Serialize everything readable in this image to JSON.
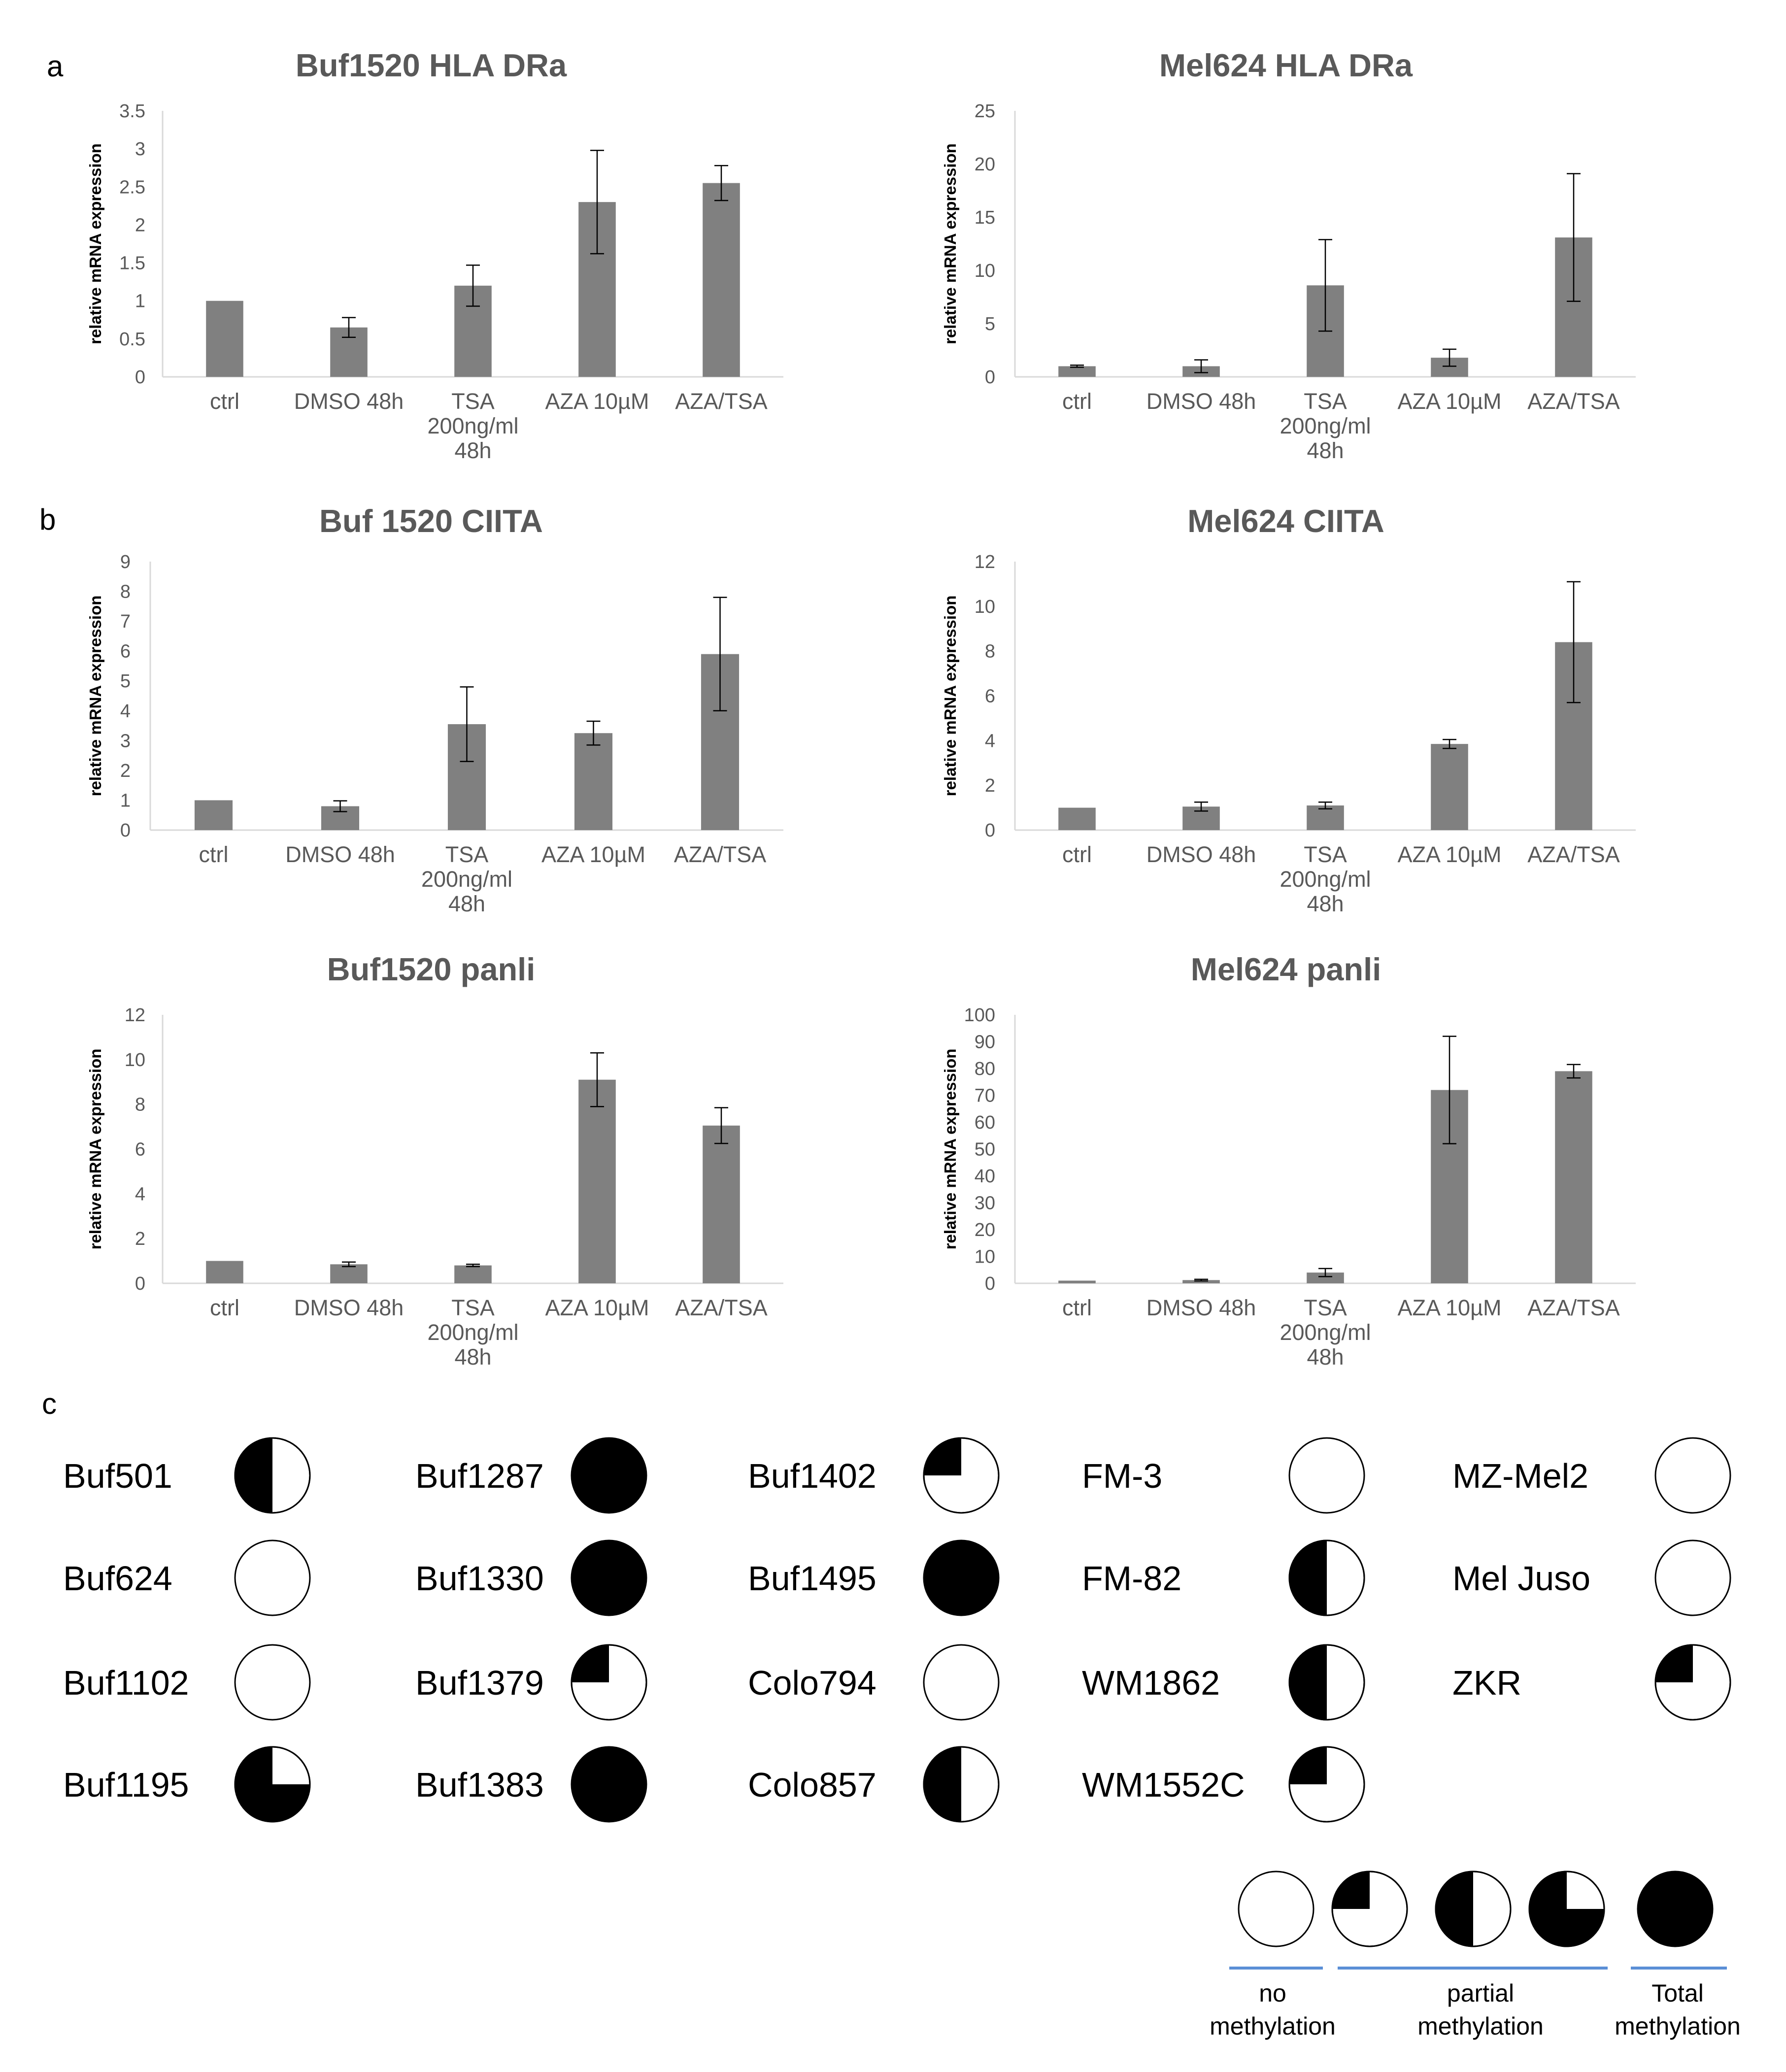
{
  "panel_letters": {
    "a": "a",
    "b": "b",
    "c": "c"
  },
  "chart_data": [
    {
      "type": "bar",
      "title": "Buf1520 HLA DRa",
      "ylabel": "relative mRNA expression",
      "categories": [
        "ctrl",
        "DMSO 48h",
        "TSA 200ng/ml 48h",
        "AZA 10µM",
        "AZA/TSA"
      ],
      "values": [
        1.0,
        0.65,
        1.2,
        2.3,
        2.55
      ],
      "errors": [
        0.0,
        0.13,
        0.27,
        0.68,
        0.23
      ],
      "ylim": [
        0,
        3.5
      ],
      "yticks": [
        "0",
        "0.5",
        "1",
        "1.5",
        "2",
        "2.5",
        "3",
        "3.5"
      ],
      "color": "#808080"
    },
    {
      "type": "bar",
      "title": "Mel624 HLA DRa",
      "ylabel": "relative mRNA expression",
      "categories": [
        "ctrl",
        "DMSO 48h",
        "TSA 200ng/ml 48h",
        "AZA 10µM",
        "AZA/TSA"
      ],
      "values": [
        1.0,
        1.0,
        8.6,
        1.8,
        13.1
      ],
      "errors": [
        0.1,
        0.6,
        4.3,
        0.8,
        6.0
      ],
      "ylim": [
        0,
        25
      ],
      "yticks": [
        "0",
        "5",
        "10",
        "15",
        "20",
        "25"
      ],
      "color": "#808080"
    },
    {
      "type": "bar",
      "title": "Buf 1520 CIITA",
      "ylabel": "relative mRNA expression",
      "categories": [
        "ctrl",
        "DMSO 48h",
        "TSA 200ng/ml 48h",
        "AZA 10µM",
        "AZA/TSA"
      ],
      "values": [
        1.0,
        0.8,
        3.55,
        3.25,
        5.9
      ],
      "errors": [
        0.0,
        0.18,
        1.25,
        0.4,
        1.9
      ],
      "ylim": [
        0,
        9
      ],
      "yticks": [
        "0",
        "1",
        "2",
        "3",
        "4",
        "5",
        "6",
        "7",
        "8",
        "9"
      ],
      "color": "#808080"
    },
    {
      "type": "bar",
      "title": "Mel624 CIITA",
      "ylabel": "relative mRNA expression",
      "categories": [
        "ctrl",
        "DMSO 48h",
        "TSA 200ng/ml 48h",
        "AZA 10µM",
        "AZA/TSA"
      ],
      "values": [
        1.0,
        1.05,
        1.1,
        3.85,
        8.4
      ],
      "errors": [
        0.0,
        0.2,
        0.15,
        0.2,
        2.7
      ],
      "ylim": [
        0,
        12
      ],
      "yticks": [
        "0",
        "2",
        "4",
        "6",
        "8",
        "10",
        "12"
      ],
      "color": "#808080"
    },
    {
      "type": "bar",
      "title": "Buf1520 panli",
      "ylabel": "relative mRNA expression",
      "categories": [
        "ctrl",
        "DMSO 48h",
        "TSA 200ng/ml 48h",
        "AZA 10µM",
        "AZA/TSA"
      ],
      "values": [
        1.0,
        0.85,
        0.8,
        9.1,
        7.05
      ],
      "errors": [
        0.0,
        0.1,
        0.05,
        1.2,
        0.8
      ],
      "ylim": [
        0,
        12
      ],
      "yticks": [
        "0",
        "2",
        "4",
        "6",
        "8",
        "10",
        "12"
      ],
      "color": "#808080"
    },
    {
      "type": "bar",
      "title": "Mel624 panli",
      "ylabel": "relative mRNA expression",
      "categories": [
        "ctrl",
        "DMSO 48h",
        "TSA 200ng/ml 48h",
        "AZA 10µM",
        "AZA/TSA"
      ],
      "values": [
        1.0,
        1.2,
        4.0,
        72.0,
        79.0
      ],
      "errors": [
        0.0,
        0.3,
        1.5,
        20.0,
        2.5
      ],
      "ylim": [
        0,
        100
      ],
      "yticks": [
        "0",
        "10",
        "20",
        "30",
        "40",
        "50",
        "60",
        "70",
        "80",
        "90",
        "100"
      ],
      "color": "#808080"
    }
  ],
  "methylation": {
    "cell_lines": [
      {
        "name": "Buf501",
        "fraction": 0.5
      },
      {
        "name": "Buf624",
        "fraction": 0
      },
      {
        "name": "Buf1102",
        "fraction": 0
      },
      {
        "name": "Buf1195",
        "fraction": 0.75
      },
      {
        "name": "Buf1287",
        "fraction": 1
      },
      {
        "name": "Buf1330",
        "fraction": 1
      },
      {
        "name": "Buf1379",
        "fraction": 0.25
      },
      {
        "name": "Buf1383",
        "fraction": 1
      },
      {
        "name": "Buf1402",
        "fraction": 0.25
      },
      {
        "name": "Buf1495",
        "fraction": 1
      },
      {
        "name": "Colo794",
        "fraction": 0
      },
      {
        "name": "Colo857",
        "fraction": 0.5
      },
      {
        "name": "FM-3",
        "fraction": 0
      },
      {
        "name": "FM-82",
        "fraction": 0.5
      },
      {
        "name": "WM1862",
        "fraction": 0.5
      },
      {
        "name": "WM1552C",
        "fraction": 0.25
      },
      {
        "name": "MZ-Mel2",
        "fraction": 0
      },
      {
        "name": "Mel Juso",
        "fraction": 0
      },
      {
        "name": "ZKR",
        "fraction": 0.25
      }
    ],
    "legend": {
      "fractions": [
        0,
        0.25,
        0.5,
        0.75,
        1
      ],
      "groups": [
        {
          "line1": "no",
          "line2": "methylation"
        },
        {
          "line1": "partial",
          "line2": "methylation"
        },
        {
          "line1": "Total",
          "line2": "methylation"
        }
      ]
    }
  }
}
